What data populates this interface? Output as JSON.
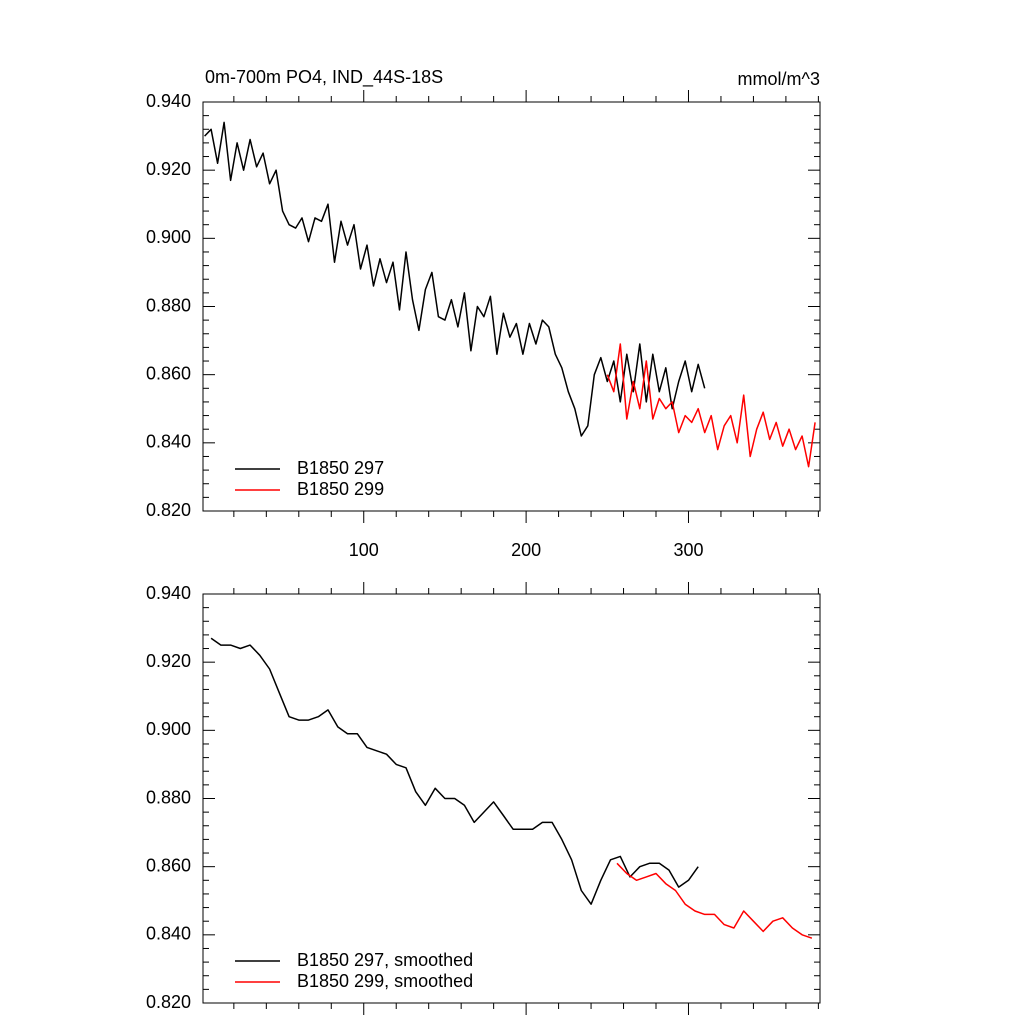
{
  "chart_data": [
    {
      "type": "line",
      "title": "0m-700m PO4, IND_44S-18S",
      "units": "mmol/m^3",
      "xlim": [
        1,
        381
      ],
      "xticks": [
        100,
        200,
        300
      ],
      "ylim": [
        0.82,
        0.94
      ],
      "yticks": [
        {
          "value": 0.82,
          "label": "0.820"
        },
        {
          "value": 0.84,
          "label": "0.840"
        },
        {
          "value": 0.86,
          "label": "0.860"
        },
        {
          "value": 0.88,
          "label": "0.880"
        },
        {
          "value": 0.9,
          "label": "0.900"
        },
        {
          "value": 0.92,
          "label": "0.920"
        },
        {
          "value": 0.94,
          "label": "0.940"
        }
      ],
      "series": [
        {
          "name": "B1850 297",
          "color": "#000000",
          "x": [
            2,
            6,
            10,
            14,
            18,
            22,
            26,
            30,
            34,
            38,
            42,
            46,
            50,
            54,
            58,
            62,
            66,
            70,
            74,
            78,
            82,
            86,
            90,
            94,
            98,
            102,
            106,
            110,
            114,
            118,
            122,
            126,
            130,
            134,
            138,
            142,
            146,
            150,
            154,
            158,
            162,
            166,
            170,
            174,
            178,
            182,
            186,
            190,
            194,
            198,
            202,
            206,
            210,
            214,
            218,
            222,
            226,
            230,
            234,
            238,
            242,
            246,
            250,
            254,
            258,
            262,
            266,
            270,
            274,
            278,
            282,
            286,
            290,
            294,
            298,
            302,
            306,
            310
          ],
          "values": [
            0.93,
            0.932,
            0.922,
            0.934,
            0.917,
            0.928,
            0.92,
            0.929,
            0.921,
            0.925,
            0.916,
            0.92,
            0.908,
            0.904,
            0.903,
            0.906,
            0.899,
            0.906,
            0.905,
            0.91,
            0.893,
            0.905,
            0.898,
            0.904,
            0.891,
            0.898,
            0.886,
            0.894,
            0.887,
            0.893,
            0.879,
            0.896,
            0.882,
            0.873,
            0.885,
            0.89,
            0.877,
            0.876,
            0.882,
            0.874,
            0.884,
            0.867,
            0.88,
            0.877,
            0.883,
            0.866,
            0.878,
            0.871,
            0.875,
            0.866,
            0.875,
            0.869,
            0.876,
            0.874,
            0.866,
            0.862,
            0.855,
            0.85,
            0.842,
            0.845,
            0.86,
            0.865,
            0.858,
            0.864,
            0.852,
            0.866,
            0.855,
            0.869,
            0.852,
            0.866,
            0.855,
            0.862,
            0.85,
            0.858,
            0.864,
            0.855,
            0.863,
            0.856
          ]
        },
        {
          "name": "B1850 299",
          "color": "#ff0000",
          "x": [
            250,
            254,
            258,
            262,
            266,
            270,
            274,
            278,
            282,
            286,
            290,
            294,
            298,
            302,
            306,
            310,
            314,
            318,
            322,
            326,
            330,
            334,
            338,
            342,
            346,
            350,
            354,
            358,
            362,
            366,
            370,
            374,
            378
          ],
          "values": [
            0.86,
            0.855,
            0.869,
            0.847,
            0.858,
            0.85,
            0.864,
            0.847,
            0.853,
            0.85,
            0.852,
            0.843,
            0.848,
            0.846,
            0.85,
            0.843,
            0.848,
            0.838,
            0.845,
            0.848,
            0.84,
            0.854,
            0.836,
            0.844,
            0.849,
            0.841,
            0.846,
            0.839,
            0.844,
            0.838,
            0.842,
            0.833,
            0.846
          ]
        }
      ]
    },
    {
      "type": "line",
      "xlim": [
        1,
        381
      ],
      "xticks": [
        100,
        200,
        300
      ],
      "ylim": [
        0.82,
        0.94
      ],
      "yticks": [
        {
          "value": 0.82,
          "label": "0.820"
        },
        {
          "value": 0.84,
          "label": "0.840"
        },
        {
          "value": 0.86,
          "label": "0.860"
        },
        {
          "value": 0.88,
          "label": "0.880"
        },
        {
          "value": 0.9,
          "label": "0.900"
        },
        {
          "value": 0.92,
          "label": "0.920"
        },
        {
          "value": 0.94,
          "label": "0.940"
        }
      ],
      "series": [
        {
          "name": "B1850 297, smoothed",
          "color": "#000000",
          "x": [
            6,
            12,
            18,
            24,
            30,
            36,
            42,
            48,
            54,
            60,
            66,
            72,
            78,
            84,
            90,
            96,
            102,
            108,
            114,
            120,
            126,
            132,
            138,
            144,
            150,
            156,
            162,
            168,
            174,
            180,
            186,
            192,
            198,
            204,
            210,
            216,
            222,
            228,
            234,
            240,
            246,
            252,
            258,
            264,
            270,
            276,
            282,
            288,
            294,
            300,
            306
          ],
          "values": [
            0.927,
            0.925,
            0.925,
            0.924,
            0.925,
            0.922,
            0.918,
            0.911,
            0.904,
            0.903,
            0.903,
            0.904,
            0.906,
            0.901,
            0.899,
            0.899,
            0.895,
            0.894,
            0.893,
            0.89,
            0.889,
            0.882,
            0.878,
            0.883,
            0.88,
            0.88,
            0.878,
            0.873,
            0.876,
            0.879,
            0.875,
            0.871,
            0.871,
            0.871,
            0.873,
            0.873,
            0.868,
            0.862,
            0.853,
            0.849,
            0.856,
            0.862,
            0.863,
            0.857,
            0.86,
            0.861,
            0.861,
            0.859,
            0.854,
            0.856,
            0.86
          ]
        },
        {
          "name": "B1850 299, smoothed",
          "color": "#ff0000",
          "x": [
            256,
            262,
            268,
            274,
            280,
            286,
            292,
            298,
            304,
            310,
            316,
            322,
            328,
            334,
            340,
            346,
            352,
            358,
            364,
            370,
            376
          ],
          "values": [
            0.861,
            0.858,
            0.856,
            0.857,
            0.858,
            0.855,
            0.853,
            0.849,
            0.847,
            0.846,
            0.846,
            0.843,
            0.842,
            0.847,
            0.844,
            0.841,
            0.844,
            0.845,
            0.842,
            0.84,
            0.839
          ]
        }
      ]
    }
  ]
}
